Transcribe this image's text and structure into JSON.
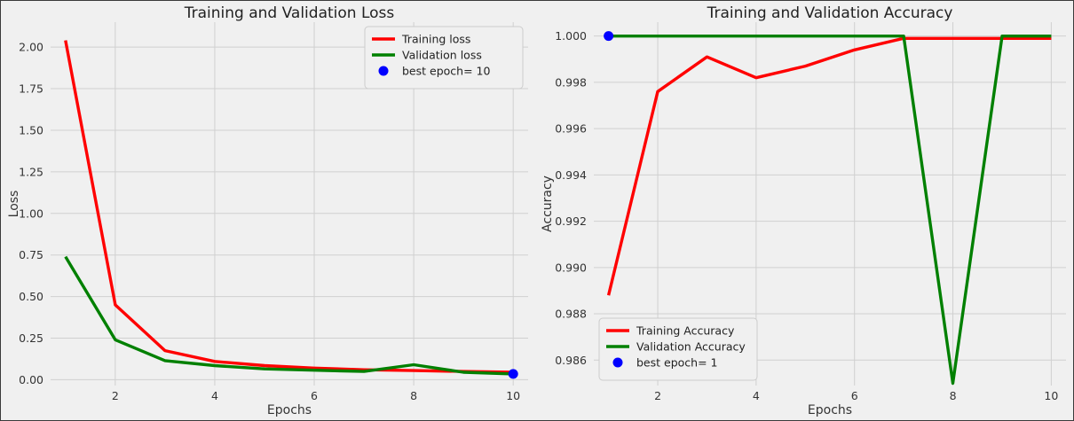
{
  "chart_data": [
    {
      "type": "line",
      "title": "Training and Validation Loss",
      "xlabel": "Epochs",
      "ylabel": "Loss",
      "xlim": [
        0.7,
        10.3
      ],
      "ylim": [
        -0.035,
        2.15
      ],
      "xticks": [
        2,
        4,
        6,
        8,
        10
      ],
      "yticks": [
        0.0,
        0.25,
        0.5,
        0.75,
        1.0,
        1.25,
        1.5,
        1.75,
        2.0
      ],
      "ytick_labels": [
        "0.00",
        "0.25",
        "0.50",
        "0.75",
        "1.00",
        "1.25",
        "1.50",
        "1.75",
        "2.00"
      ],
      "grid": true,
      "legend_position": "top-right",
      "x": [
        1,
        2,
        3,
        4,
        5,
        6,
        7,
        8,
        9,
        10
      ],
      "series": [
        {
          "name": "Training loss",
          "color": "#ff0000",
          "values": [
            2.04,
            0.45,
            0.175,
            0.11,
            0.085,
            0.07,
            0.06,
            0.055,
            0.05,
            0.045
          ]
        },
        {
          "name": "Validation loss",
          "color": "#008000",
          "values": [
            0.74,
            0.24,
            0.115,
            0.085,
            0.065,
            0.057,
            0.05,
            0.09,
            0.045,
            0.035
          ]
        }
      ],
      "highlight": {
        "name": "best epoch= 10",
        "color": "#0000ff",
        "x": 10,
        "y": 0.035
      }
    },
    {
      "type": "line",
      "title": "Training and Validation Accuracy",
      "xlabel": "Epochs",
      "ylabel": "Accuracy",
      "xlim": [
        0.7,
        10.3
      ],
      "ylim": [
        0.9849,
        1.0006
      ],
      "xticks": [
        2,
        4,
        6,
        8,
        10
      ],
      "yticks": [
        0.986,
        0.988,
        0.99,
        0.992,
        0.994,
        0.996,
        0.998,
        1.0
      ],
      "ytick_labels": [
        "0.986",
        "0.988",
        "0.990",
        "0.992",
        "0.994",
        "0.996",
        "0.998",
        "1.000"
      ],
      "grid": true,
      "legend_position": "bottom-left",
      "x": [
        1,
        2,
        3,
        4,
        5,
        6,
        7,
        8,
        9,
        10
      ],
      "series": [
        {
          "name": "Training Accuracy",
          "color": "#ff0000",
          "values": [
            0.9888,
            0.9976,
            0.9991,
            0.9982,
            0.9987,
            0.9994,
            0.9999,
            0.9999,
            0.9999,
            0.9999
          ]
        },
        {
          "name": "Validation Accuracy",
          "color": "#008000",
          "values": [
            1.0,
            1.0,
            1.0,
            1.0,
            1.0,
            1.0,
            1.0,
            0.985,
            1.0,
            1.0
          ]
        }
      ],
      "highlight": {
        "name": "best epoch= 1",
        "color": "#0000ff",
        "x": 1,
        "y": 1.0
      }
    }
  ]
}
